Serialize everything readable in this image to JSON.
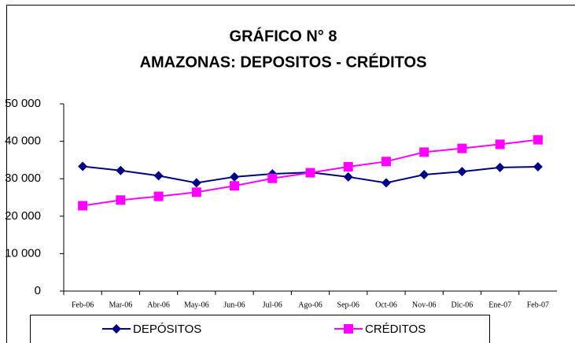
{
  "chart_data": {
    "type": "line",
    "title": "GRÁFICO N° 8",
    "subtitle": "AMAZONAS: DEPOSITOS - CRÉDITOS",
    "categories": [
      "Feb-06",
      "Mar-06",
      "Abr-06",
      "May-06",
      "Jun-06",
      "Jul-06",
      "Ago-06",
      "Sep-06",
      "Oct-06",
      "Nov-06",
      "Dic-06",
      "Ene-07",
      "Feb-07"
    ],
    "series": [
      {
        "name": "DEPÓSITOS",
        "color": "#000080",
        "marker": "diamond",
        "values": [
          33300,
          32200,
          30800,
          28900,
          30500,
          31300,
          31700,
          30500,
          28900,
          31100,
          31900,
          33000,
          33200
        ]
      },
      {
        "name": "CRÉDITOS",
        "color": "#ff00ff",
        "marker": "square",
        "values": [
          22800,
          24300,
          25300,
          26400,
          28100,
          30100,
          31600,
          33200,
          34600,
          37100,
          38100,
          39200,
          40400
        ]
      }
    ],
    "ylim": [
      0,
      50000
    ],
    "yticks": [
      0,
      {
        "value": 10000,
        "label": "10 000"
      },
      {
        "value": 20000,
        "label": "20 000"
      },
      {
        "value": 30000,
        "label": "30 000"
      },
      {
        "value": 40000,
        "label": "40 000"
      },
      {
        "value": 50000,
        "label": "50 000"
      }
    ],
    "grid": false,
    "legend": "bottom"
  }
}
